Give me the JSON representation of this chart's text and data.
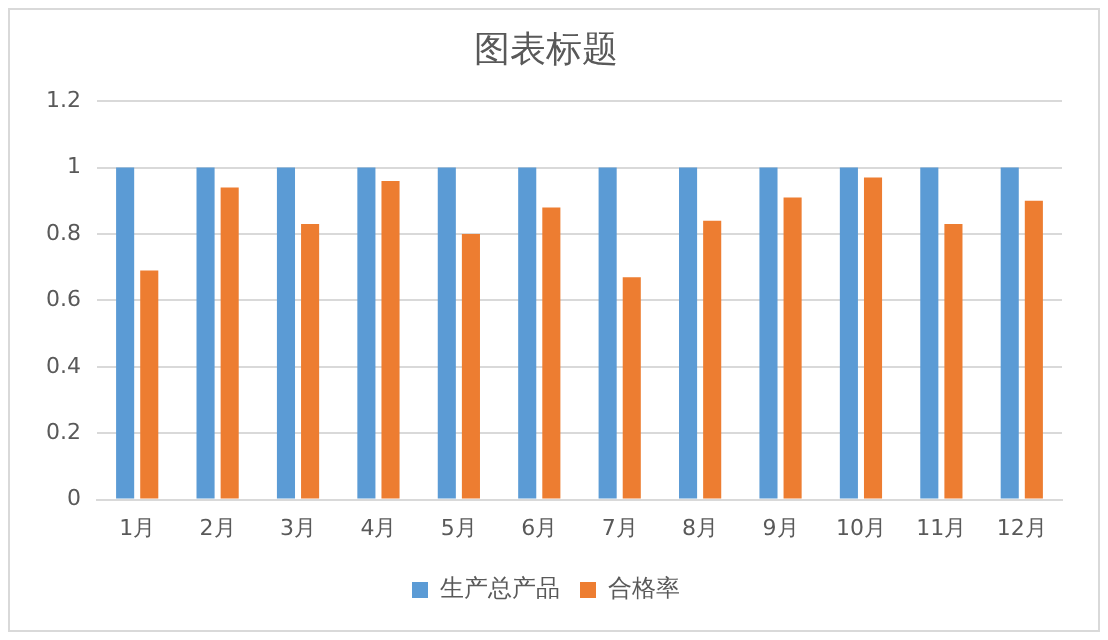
{
  "chart_data": {
    "type": "bar",
    "title": "图表标题",
    "categories": [
      "1月",
      "2月",
      "3月",
      "4月",
      "5月",
      "6月",
      "7月",
      "8月",
      "9月",
      "10月",
      "11月",
      "12月"
    ],
    "series": [
      {
        "name": "生产总产品",
        "color": "#5b9bd5",
        "values": [
          1,
          1,
          1,
          1,
          1,
          1,
          1,
          1,
          1,
          1,
          1,
          1
        ]
      },
      {
        "name": "合格率",
        "color": "#ed7d31",
        "values": [
          0.69,
          0.94,
          0.83,
          0.96,
          0.8,
          0.88,
          0.67,
          0.84,
          0.91,
          0.97,
          0.83,
          0.9
        ]
      }
    ],
    "ylim": [
      0,
      1.2
    ],
    "yticks": [
      0,
      0.2,
      0.4,
      0.6,
      0.8,
      1,
      1.2
    ],
    "grid": "y",
    "legend": "bottom"
  }
}
